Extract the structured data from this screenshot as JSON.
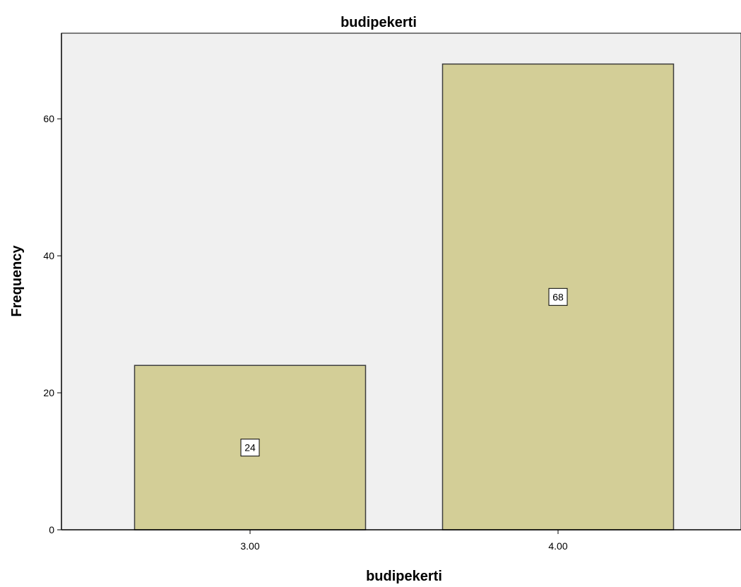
{
  "chart_data": {
    "type": "bar",
    "title": "budipekerti",
    "xlabel": "budipekerti",
    "ylabel": "Frequency",
    "categories": [
      "3.00",
      "4.00"
    ],
    "values": [
      24,
      68
    ],
    "data_labels": [
      "24",
      "68"
    ],
    "ylim": [
      0,
      72.5
    ],
    "yticks": [
      0,
      20,
      40,
      60
    ],
    "grid": false,
    "legend": "none",
    "colors": {
      "plot_background": "#f0f0f0",
      "bar_fill": "#d3ce97",
      "bar_stroke": "#3d3d3d",
      "label_box": "#ffffff"
    }
  }
}
